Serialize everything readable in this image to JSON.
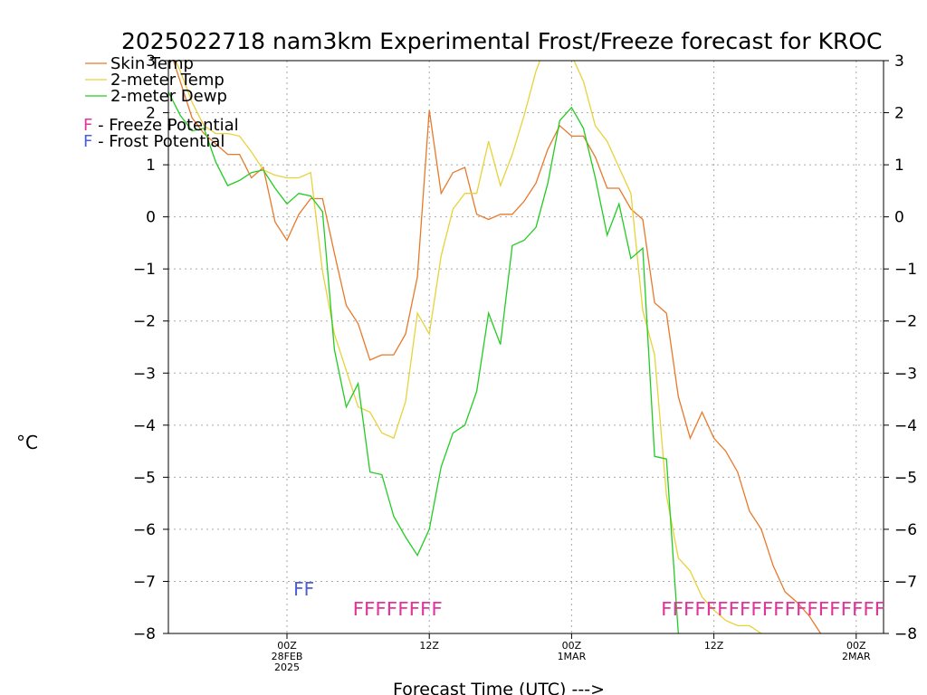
{
  "chart_data": {
    "type": "line",
    "title": "2025022718 nam3km Experimental Frost/Freeze forecast for KROC",
    "xlabel": "Forecast Time (UTC) --->",
    "ylabel": "°C",
    "ylim": [
      -8,
      3
    ],
    "yticks": [
      3,
      2,
      1,
      0,
      -1,
      -2,
      -3,
      -4,
      -5,
      -6,
      -7,
      -8
    ],
    "x_range_hours": [
      -4,
      51
    ],
    "x_ticks": [
      {
        "hour": 6,
        "lines": [
          "00Z",
          "28FEB",
          "2025"
        ]
      },
      {
        "hour": 18,
        "lines": [
          "12Z"
        ]
      },
      {
        "hour": 30,
        "lines": [
          "00Z",
          "1MAR"
        ]
      },
      {
        "hour": 42,
        "lines": [
          "12Z"
        ]
      },
      {
        "hour": 54,
        "lines": [
          "00Z",
          "2MAR"
        ]
      }
    ],
    "grid": true,
    "legend": [
      {
        "label": "Skin Temp",
        "color": "#e8792a"
      },
      {
        "label": "2-meter Temp",
        "color": "#e8d23a"
      },
      {
        "label": "2-meter Dewp",
        "color": "#22cc22"
      }
    ],
    "potential_legend": [
      {
        "letter": "F",
        "text": " - Freeze Potential",
        "color": "#e0369a"
      },
      {
        "letter": "F",
        "text": " - Frost Potential",
        "color": "#4a5fd0"
      }
    ],
    "series": [
      {
        "name": "Skin Temp",
        "color": "#e8792a",
        "points": [
          [
            -4,
            3.3
          ],
          [
            -3,
            2.6
          ],
          [
            -2,
            1.9
          ],
          [
            -1,
            1.6
          ],
          [
            0,
            1.4
          ],
          [
            1,
            1.2
          ],
          [
            2,
            1.2
          ],
          [
            3,
            0.75
          ],
          [
            4,
            0.95
          ],
          [
            5,
            -0.1
          ],
          [
            6,
            -0.45
          ],
          [
            7,
            0.05
          ],
          [
            8,
            0.35
          ],
          [
            9,
            0.35
          ],
          [
            10,
            -0.7
          ],
          [
            11,
            -1.7
          ],
          [
            12,
            -2.05
          ],
          [
            13,
            -2.75
          ],
          [
            14,
            -2.65
          ],
          [
            15,
            -2.65
          ],
          [
            16,
            -2.25
          ],
          [
            17,
            -1.15
          ],
          [
            18,
            2.05
          ],
          [
            19,
            0.45
          ],
          [
            20,
            0.85
          ],
          [
            21,
            0.95
          ],
          [
            22,
            0.05
          ],
          [
            23,
            -0.05
          ],
          [
            24,
            0.05
          ],
          [
            25,
            0.05
          ],
          [
            26,
            0.3
          ],
          [
            27,
            0.65
          ],
          [
            28,
            1.3
          ],
          [
            29,
            1.75
          ],
          [
            30,
            1.55
          ],
          [
            31,
            1.55
          ],
          [
            32,
            1.15
          ],
          [
            33,
            0.55
          ],
          [
            34,
            0.55
          ],
          [
            35,
            0.15
          ],
          [
            36,
            -0.05
          ],
          [
            37,
            -1.65
          ],
          [
            38,
            -1.85
          ],
          [
            39,
            -3.45
          ],
          [
            40,
            -4.25
          ],
          [
            41,
            -3.75
          ],
          [
            42,
            -4.25
          ],
          [
            43,
            -4.5
          ],
          [
            44,
            -4.9
          ],
          [
            45,
            -5.65
          ],
          [
            46,
            -6.0
          ],
          [
            47,
            -6.7
          ],
          [
            48,
            -7.2
          ],
          [
            49,
            -7.4
          ],
          [
            50,
            -7.65
          ],
          [
            51,
            -8.0
          ]
        ]
      },
      {
        "name": "2-meter Temp",
        "color": "#e8d23a",
        "points": [
          [
            -4,
            3.3
          ],
          [
            -3,
            2.8
          ],
          [
            -2,
            2.2
          ],
          [
            -1,
            1.75
          ],
          [
            0,
            1.6
          ],
          [
            1,
            1.6
          ],
          [
            2,
            1.55
          ],
          [
            3,
            1.25
          ],
          [
            4,
            0.9
          ],
          [
            5,
            0.8
          ],
          [
            6,
            0.75
          ],
          [
            7,
            0.75
          ],
          [
            8,
            0.85
          ],
          [
            9,
            -1.05
          ],
          [
            10,
            -2.25
          ],
          [
            11,
            -2.95
          ],
          [
            12,
            -3.65
          ],
          [
            13,
            -3.75
          ],
          [
            14,
            -4.15
          ],
          [
            15,
            -4.25
          ],
          [
            16,
            -3.55
          ],
          [
            17,
            -1.85
          ],
          [
            18,
            -2.25
          ],
          [
            19,
            -0.75
          ],
          [
            20,
            0.15
          ],
          [
            21,
            0.45
          ],
          [
            22,
            0.45
          ],
          [
            23,
            1.45
          ],
          [
            24,
            0.6
          ],
          [
            25,
            1.2
          ],
          [
            26,
            1.95
          ],
          [
            27,
            2.8
          ],
          [
            28,
            3.4
          ],
          [
            29,
            3.2
          ],
          [
            30,
            3.1
          ],
          [
            31,
            2.6
          ],
          [
            32,
            1.75
          ],
          [
            33,
            1.45
          ],
          [
            34,
            0.95
          ],
          [
            35,
            0.45
          ],
          [
            36,
            -1.8
          ],
          [
            37,
            -2.65
          ],
          [
            38,
            -5.35
          ],
          [
            39,
            -6.55
          ],
          [
            40,
            -6.8
          ],
          [
            41,
            -7.3
          ],
          [
            42,
            -7.55
          ],
          [
            43,
            -7.75
          ],
          [
            44,
            -7.85
          ],
          [
            45,
            -7.85
          ],
          [
            46,
            -8.0
          ]
        ]
      },
      {
        "name": "2-meter Dewp",
        "color": "#22cc22",
        "points": [
          [
            -4,
            2.4
          ],
          [
            -3,
            1.95
          ],
          [
            -2,
            1.65
          ],
          [
            -1,
            1.7
          ],
          [
            0,
            1.05
          ],
          [
            1,
            0.6
          ],
          [
            2,
            0.7
          ],
          [
            3,
            0.85
          ],
          [
            4,
            0.9
          ],
          [
            5,
            0.55
          ],
          [
            6,
            0.25
          ],
          [
            7,
            0.45
          ],
          [
            8,
            0.4
          ],
          [
            9,
            0.1
          ],
          [
            10,
            -2.55
          ],
          [
            11,
            -3.65
          ],
          [
            12,
            -3.2
          ],
          [
            13,
            -4.9
          ],
          [
            14,
            -4.95
          ],
          [
            15,
            -5.75
          ],
          [
            16,
            -6.15
          ],
          [
            17,
            -6.5
          ],
          [
            18,
            -6.0
          ],
          [
            19,
            -4.8
          ],
          [
            20,
            -4.15
          ],
          [
            21,
            -4.0
          ],
          [
            22,
            -3.35
          ],
          [
            23,
            -1.85
          ],
          [
            24,
            -2.45
          ],
          [
            25,
            -0.55
          ],
          [
            26,
            -0.45
          ],
          [
            27,
            -0.2
          ],
          [
            28,
            0.65
          ],
          [
            29,
            1.85
          ],
          [
            30,
            2.1
          ],
          [
            31,
            1.7
          ],
          [
            32,
            0.75
          ],
          [
            33,
            -0.35
          ],
          [
            34,
            0.25
          ],
          [
            35,
            -0.8
          ],
          [
            36,
            -0.6
          ],
          [
            37,
            -4.6
          ],
          [
            38,
            -4.65
          ],
          [
            39,
            -8.0
          ]
        ]
      }
    ],
    "frost_marks": {
      "text": "FF",
      "color": "#4a5fd0",
      "hours": [
        7,
        8
      ]
    },
    "freeze_marks": [
      {
        "text": "FFFFFFFF",
        "color": "#e0369a",
        "hours": [
          12,
          13,
          14,
          15,
          16,
          17,
          18,
          19
        ]
      },
      {
        "text": "FFFFFFFFFFFFFFFFFFFF",
        "color": "#e0369a",
        "hours": [
          38,
          39,
          40,
          41,
          42,
          43,
          44,
          45,
          46,
          47,
          48,
          49,
          50,
          51,
          52,
          53,
          54,
          55,
          56,
          57
        ]
      }
    ]
  }
}
